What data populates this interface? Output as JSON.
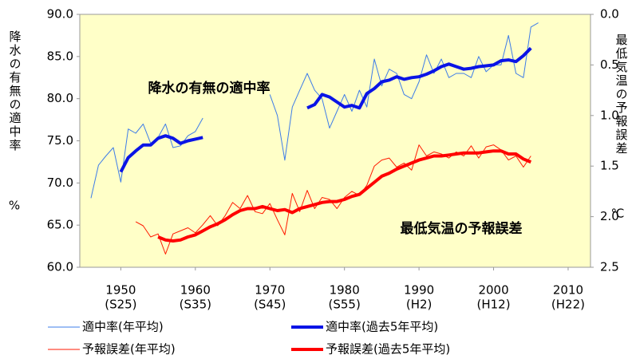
{
  "chart_data": {
    "type": "line",
    "y_label": "降水の有無の適中率",
    "y_unit": "%",
    "y2_label": "最低気温の予報誤差",
    "y2_unit": "℃",
    "annotations": [
      "降水の有無の適中率",
      "最低気温の予報誤差"
    ],
    "background": "#ffffc8",
    "xlim": [
      1944.5,
      2013
    ],
    "xticks": [
      {
        "value": 1950,
        "label": "1950",
        "era": "(S25)"
      },
      {
        "value": 1960,
        "label": "1960",
        "era": "(S35)"
      },
      {
        "value": 1970,
        "label": "1970",
        "era": "(S45)"
      },
      {
        "value": 1980,
        "label": "1980",
        "era": "(S55)"
      },
      {
        "value": 1990,
        "label": "1990",
        "era": "(H2)"
      },
      {
        "value": 2000,
        "label": "2000",
        "era": "(H12)"
      },
      {
        "value": 2010,
        "label": "2010",
        "era": "(H22)"
      }
    ],
    "ylim": [
      60,
      90
    ],
    "yticks": [
      {
        "value": 60,
        "label": "60.0"
      },
      {
        "value": 65,
        "label": "65.0"
      },
      {
        "value": 70,
        "label": "70.0"
      },
      {
        "value": 75,
        "label": "75.0"
      },
      {
        "value": 80,
        "label": "80.0"
      },
      {
        "value": 85,
        "label": "85.0"
      },
      {
        "value": 90,
        "label": "90.0"
      }
    ],
    "y2lim": [
      2.5,
      0
    ],
    "y2ticks": [
      {
        "value": 0,
        "label": "0.0"
      },
      {
        "value": 0.5,
        "label": "0.5"
      },
      {
        "value": 1,
        "label": "1.0"
      },
      {
        "value": 1.5,
        "label": "1.5"
      },
      {
        "value": 2,
        "label": "2.0"
      },
      {
        "value": 2.5,
        "label": "2.5"
      }
    ],
    "x": [
      1946,
      1947,
      1948,
      1949,
      1950,
      1951,
      1952,
      1953,
      1954,
      1955,
      1956,
      1957,
      1958,
      1959,
      1960,
      1961,
      1962,
      1963,
      1964,
      1965,
      1966,
      1967,
      1968,
      1969,
      1970,
      1971,
      1972,
      1973,
      1974,
      1975,
      1976,
      1977,
      1978,
      1979,
      1980,
      1981,
      1982,
      1983,
      1984,
      1985,
      1986,
      1987,
      1988,
      1989,
      1990,
      1991,
      1992,
      1993,
      1994,
      1995,
      1996,
      1997,
      1998,
      1999,
      2000,
      2001,
      2002,
      2003,
      2004,
      2005,
      2006
    ],
    "series": [
      {
        "name": "適中率(年平均)",
        "color": "#3d7ce8",
        "line_width": 1,
        "values": [
          68.2,
          72.1,
          73.2,
          74.2,
          70.1,
          76.4,
          75.9,
          77,
          74.7,
          75.4,
          77,
          74.2,
          74.4,
          75.6,
          76.1,
          77.7,
          null,
          null,
          null,
          null,
          null,
          null,
          null,
          null,
          80.5,
          78,
          72.7,
          79,
          81,
          83,
          81,
          80,
          76.5,
          78.5,
          80.5,
          78.5,
          81,
          79,
          84.7,
          81.5,
          83.5,
          83,
          80.5,
          80,
          82,
          85.2,
          83,
          84.7,
          82.5,
          83,
          83,
          82.5,
          85,
          83.2,
          84,
          84,
          87.5,
          83,
          82.5,
          88.5,
          89
        ]
      },
      {
        "name": "適中率(過去5年平均)",
        "color": "#0a14e6",
        "line_width": 4,
        "values": [
          null,
          null,
          null,
          null,
          71.3,
          73,
          73.8,
          74.5,
          74.5,
          75.3,
          75.6,
          75.3,
          74.7,
          75,
          75.2,
          75.4,
          null,
          null,
          null,
          null,
          null,
          null,
          null,
          null,
          null,
          null,
          null,
          null,
          null,
          78.9,
          79.3,
          80.5,
          80.2,
          79.6,
          79,
          79.2,
          78.9,
          80.6,
          81.2,
          82,
          82.2,
          82.6,
          82.3,
          82.5,
          82.6,
          82.9,
          83.3,
          83.8,
          84.1,
          83.8,
          83.5,
          83.6,
          83.8,
          83.9,
          84,
          84.5,
          84.6,
          84.4,
          85.1,
          86,
          null
        ]
      },
      {
        "name": "予報誤差(年平均)",
        "color": "#ff1a00",
        "line_width": 1,
        "axis": "y2",
        "values": [
          null,
          null,
          null,
          null,
          null,
          null,
          2.05,
          2.09,
          2.2,
          2.17,
          2.37,
          2.17,
          2.14,
          2.11,
          2.16,
          2.08,
          1.99,
          2.09,
          1.99,
          1.86,
          1.92,
          1.79,
          1.95,
          1.97,
          1.87,
          2.03,
          2.18,
          1.77,
          1.95,
          1.74,
          1.92,
          1.81,
          1.83,
          1.92,
          1.81,
          1.75,
          1.79,
          1.69,
          1.5,
          1.44,
          1.42,
          1.51,
          1.47,
          1.54,
          1.29,
          1.4,
          1.36,
          1.38,
          1.42,
          1.36,
          1.4,
          1.3,
          1.42,
          1.31,
          1.29,
          1.34,
          1.44,
          1.4,
          1.51,
          1.4,
          null
        ]
      },
      {
        "name": "予報誤差(過去5年平均)",
        "color": "#ff0000",
        "line_width": 4,
        "axis": "y2",
        "values": [
          null,
          null,
          null,
          null,
          null,
          null,
          null,
          null,
          null,
          2.2,
          2.23,
          2.24,
          2.23,
          2.2,
          2.18,
          2.14,
          2.1,
          2.07,
          2.03,
          1.98,
          1.94,
          1.92,
          1.92,
          1.9,
          1.92,
          1.94,
          1.93,
          1.96,
          1.92,
          1.9,
          1.88,
          1.86,
          1.85,
          1.85,
          1.83,
          1.8,
          1.78,
          1.72,
          1.66,
          1.6,
          1.57,
          1.53,
          1.5,
          1.47,
          1.44,
          1.42,
          1.4,
          1.4,
          1.39,
          1.38,
          1.37,
          1.37,
          1.37,
          1.36,
          1.35,
          1.35,
          1.38,
          1.38,
          1.43,
          1.46,
          null
        ]
      }
    ]
  }
}
